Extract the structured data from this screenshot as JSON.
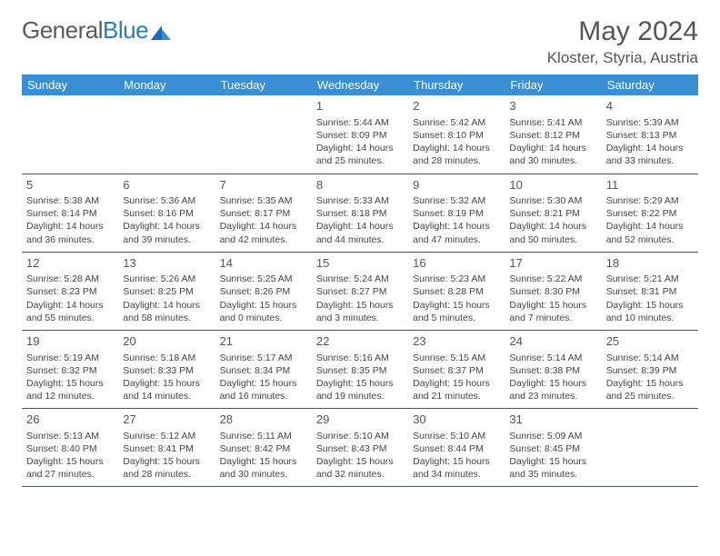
{
  "brand": {
    "part1": "General",
    "part2": "Blue"
  },
  "header": {
    "month": "May 2024",
    "location": "Kloster, Styria, Austria"
  },
  "colors": {
    "header_bg": "#3a8fd4",
    "border": "#1e5b8f",
    "text": "#444444"
  },
  "weekdays": [
    "Sunday",
    "Monday",
    "Tuesday",
    "Wednesday",
    "Thursday",
    "Friday",
    "Saturday"
  ],
  "labels": {
    "sunrise": "Sunrise:",
    "sunset": "Sunset:",
    "daylight": "Daylight:"
  },
  "weeks": [
    [
      null,
      null,
      null,
      {
        "n": "1",
        "sr": "5:44 AM",
        "ss": "8:09 PM",
        "dl": "14 hours and 25 minutes."
      },
      {
        "n": "2",
        "sr": "5:42 AM",
        "ss": "8:10 PM",
        "dl": "14 hours and 28 minutes."
      },
      {
        "n": "3",
        "sr": "5:41 AM",
        "ss": "8:12 PM",
        "dl": "14 hours and 30 minutes."
      },
      {
        "n": "4",
        "sr": "5:39 AM",
        "ss": "8:13 PM",
        "dl": "14 hours and 33 minutes."
      }
    ],
    [
      {
        "n": "5",
        "sr": "5:38 AM",
        "ss": "8:14 PM",
        "dl": "14 hours and 36 minutes."
      },
      {
        "n": "6",
        "sr": "5:36 AM",
        "ss": "8:16 PM",
        "dl": "14 hours and 39 minutes."
      },
      {
        "n": "7",
        "sr": "5:35 AM",
        "ss": "8:17 PM",
        "dl": "14 hours and 42 minutes."
      },
      {
        "n": "8",
        "sr": "5:33 AM",
        "ss": "8:18 PM",
        "dl": "14 hours and 44 minutes."
      },
      {
        "n": "9",
        "sr": "5:32 AM",
        "ss": "8:19 PM",
        "dl": "14 hours and 47 minutes."
      },
      {
        "n": "10",
        "sr": "5:30 AM",
        "ss": "8:21 PM",
        "dl": "14 hours and 50 minutes."
      },
      {
        "n": "11",
        "sr": "5:29 AM",
        "ss": "8:22 PM",
        "dl": "14 hours and 52 minutes."
      }
    ],
    [
      {
        "n": "12",
        "sr": "5:28 AM",
        "ss": "8:23 PM",
        "dl": "14 hours and 55 minutes."
      },
      {
        "n": "13",
        "sr": "5:26 AM",
        "ss": "8:25 PM",
        "dl": "14 hours and 58 minutes."
      },
      {
        "n": "14",
        "sr": "5:25 AM",
        "ss": "8:26 PM",
        "dl": "15 hours and 0 minutes."
      },
      {
        "n": "15",
        "sr": "5:24 AM",
        "ss": "8:27 PM",
        "dl": "15 hours and 3 minutes."
      },
      {
        "n": "16",
        "sr": "5:23 AM",
        "ss": "8:28 PM",
        "dl": "15 hours and 5 minutes."
      },
      {
        "n": "17",
        "sr": "5:22 AM",
        "ss": "8:30 PM",
        "dl": "15 hours and 7 minutes."
      },
      {
        "n": "18",
        "sr": "5:21 AM",
        "ss": "8:31 PM",
        "dl": "15 hours and 10 minutes."
      }
    ],
    [
      {
        "n": "19",
        "sr": "5:19 AM",
        "ss": "8:32 PM",
        "dl": "15 hours and 12 minutes."
      },
      {
        "n": "20",
        "sr": "5:18 AM",
        "ss": "8:33 PM",
        "dl": "15 hours and 14 minutes."
      },
      {
        "n": "21",
        "sr": "5:17 AM",
        "ss": "8:34 PM",
        "dl": "15 hours and 16 minutes."
      },
      {
        "n": "22",
        "sr": "5:16 AM",
        "ss": "8:35 PM",
        "dl": "15 hours and 19 minutes."
      },
      {
        "n": "23",
        "sr": "5:15 AM",
        "ss": "8:37 PM",
        "dl": "15 hours and 21 minutes."
      },
      {
        "n": "24",
        "sr": "5:14 AM",
        "ss": "8:38 PM",
        "dl": "15 hours and 23 minutes."
      },
      {
        "n": "25",
        "sr": "5:14 AM",
        "ss": "8:39 PM",
        "dl": "15 hours and 25 minutes."
      }
    ],
    [
      {
        "n": "26",
        "sr": "5:13 AM",
        "ss": "8:40 PM",
        "dl": "15 hours and 27 minutes."
      },
      {
        "n": "27",
        "sr": "5:12 AM",
        "ss": "8:41 PM",
        "dl": "15 hours and 28 minutes."
      },
      {
        "n": "28",
        "sr": "5:11 AM",
        "ss": "8:42 PM",
        "dl": "15 hours and 30 minutes."
      },
      {
        "n": "29",
        "sr": "5:10 AM",
        "ss": "8:43 PM",
        "dl": "15 hours and 32 minutes."
      },
      {
        "n": "30",
        "sr": "5:10 AM",
        "ss": "8:44 PM",
        "dl": "15 hours and 34 minutes."
      },
      {
        "n": "31",
        "sr": "5:09 AM",
        "ss": "8:45 PM",
        "dl": "15 hours and 35 minutes."
      },
      null
    ]
  ]
}
